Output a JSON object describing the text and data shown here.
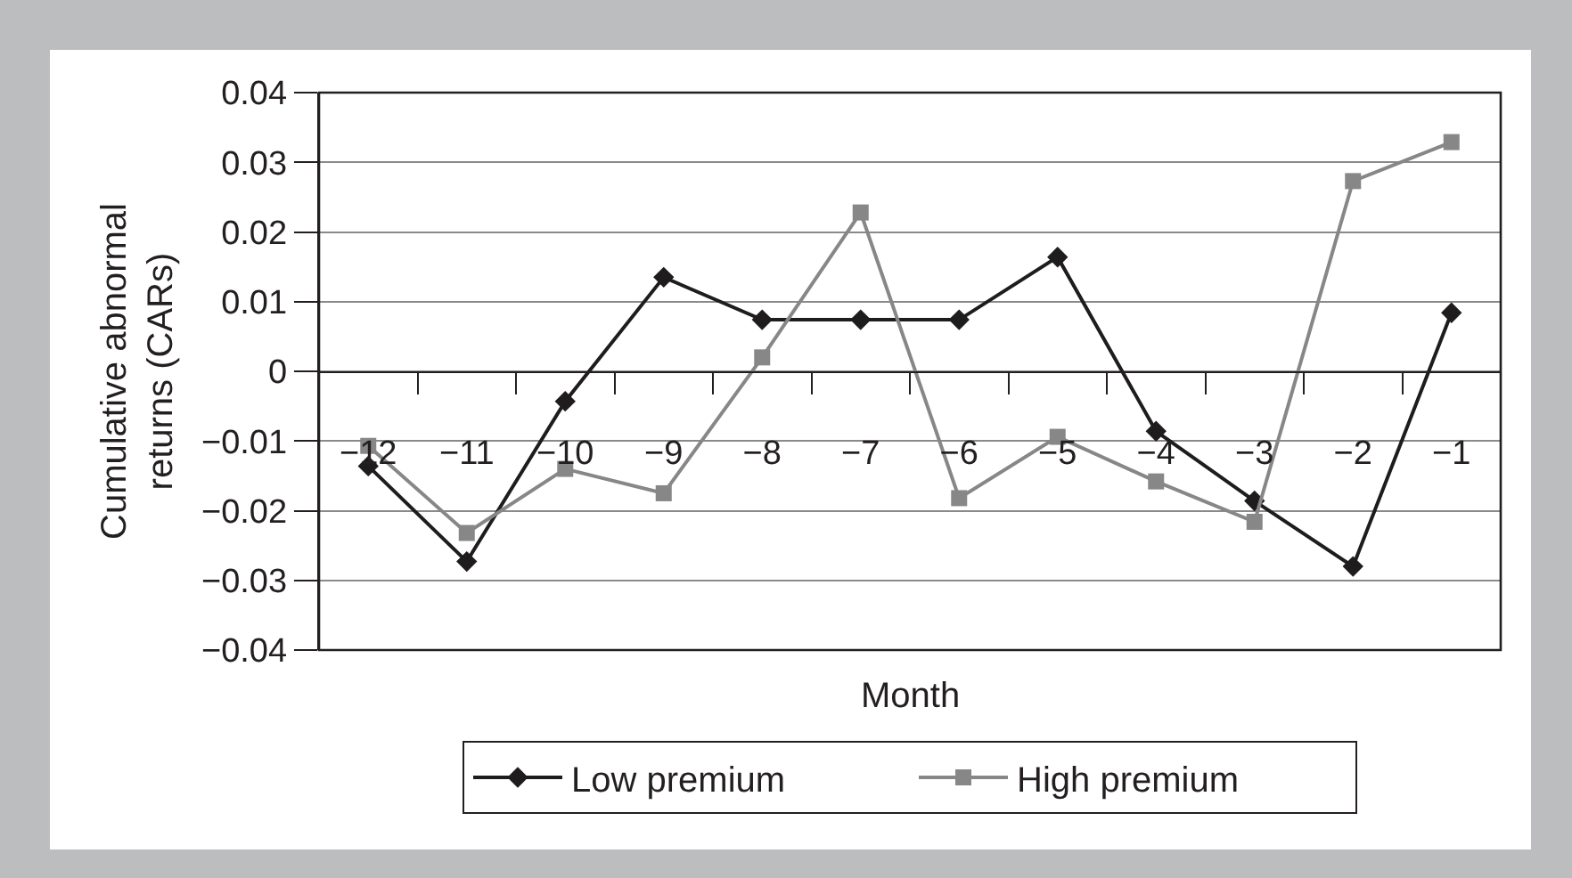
{
  "chart_data": {
    "type": "line",
    "xlabel": "Month",
    "ylabel": "Cumulative abnormal returns (CARs)",
    "categories": [
      "−12",
      "−11",
      "−10",
      "−9",
      "−8",
      "−7",
      "−6",
      "−5",
      "−4",
      "−3",
      "−2",
      "−1"
    ],
    "series": [
      {
        "name": "Low premium",
        "color": "#1e1c1d",
        "marker": "diamond",
        "values": [
          -0.0136,
          -0.0273,
          -0.0043,
          0.0135,
          0.0074,
          0.0074,
          0.0074,
          0.0164,
          -0.0086,
          -0.0186,
          -0.028,
          0.0084
        ]
      },
      {
        "name": "High premium",
        "color": "#878787",
        "marker": "square",
        "values": [
          -0.0107,
          -0.0232,
          -0.014,
          -0.0175,
          0.002,
          0.0228,
          -0.0182,
          -0.0094,
          -0.0158,
          -0.0216,
          0.0273,
          0.0329
        ]
      }
    ],
    "ylim": [
      -0.04,
      0.04
    ],
    "yticks": [
      {
        "value": -0.04,
        "label": "−0.04"
      },
      {
        "value": -0.03,
        "label": "−0.03"
      },
      {
        "value": -0.02,
        "label": "−0.02"
      },
      {
        "value": -0.01,
        "label": "−0.01"
      },
      0,
      0.01,
      0.02,
      0.03,
      0.04
    ],
    "grid": "y",
    "legend": "bottom",
    "line_style": "solid"
  }
}
